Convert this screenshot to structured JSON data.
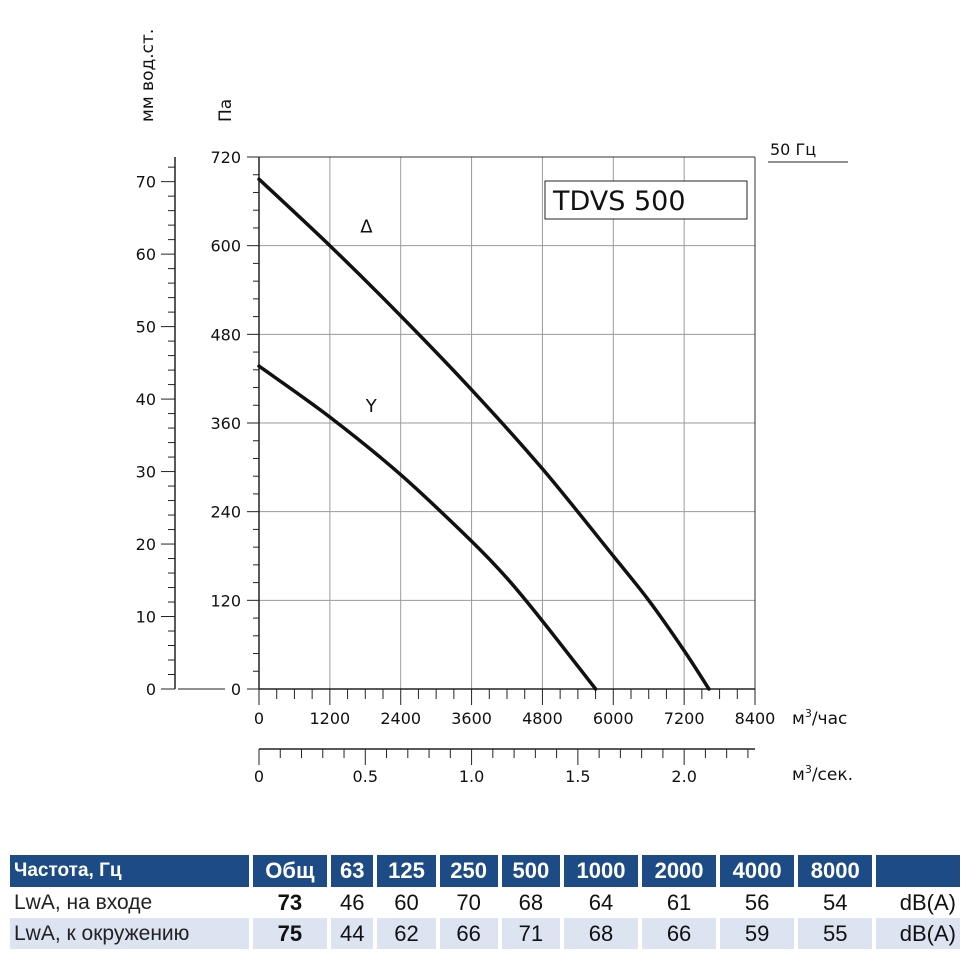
{
  "chart_data": {
    "type": "line",
    "title": "TDVS 500",
    "frequency_label": "50 Гц",
    "x": {
      "label": "м³/час",
      "ticks": [
        0,
        1200,
        2400,
        3600,
        4800,
        6000,
        7200,
        8400
      ],
      "range": [
        0,
        8400
      ]
    },
    "x2": {
      "label": "м³/сек.",
      "ticks": [
        0,
        0.5,
        1.0,
        1.5,
        2.0
      ],
      "tick_labels": [
        "0",
        "0.5",
        "1.0",
        "1.5",
        "2.0"
      ],
      "range": [
        0,
        2.3333
      ]
    },
    "y": {
      "label": "Па",
      "ticks": [
        0,
        120,
        240,
        360,
        480,
        600,
        720
      ],
      "range": [
        0,
        720
      ]
    },
    "y2": {
      "label": "мм вод.ст.",
      "ticks": [
        0,
        10,
        20,
        30,
        40,
        50,
        60,
        70
      ],
      "range": [
        0,
        73.4
      ]
    },
    "grid": true,
    "series": [
      {
        "name": "Δ",
        "points": [
          [
            0,
            690
          ],
          [
            1200,
            600
          ],
          [
            2400,
            505
          ],
          [
            3600,
            405
          ],
          [
            4800,
            298
          ],
          [
            6000,
            180
          ],
          [
            6600,
            120
          ],
          [
            7200,
            52
          ],
          [
            7620,
            0
          ]
        ]
      },
      {
        "name": "Y",
        "points": [
          [
            0,
            437
          ],
          [
            1200,
            368
          ],
          [
            2400,
            290
          ],
          [
            3600,
            200
          ],
          [
            4200,
            150
          ],
          [
            4800,
            92
          ],
          [
            5700,
            0
          ]
        ]
      }
    ]
  },
  "table": {
    "headers": [
      "Частота, Гц",
      "Общ",
      "63",
      "125",
      "250",
      "500",
      "1000",
      "2000",
      "4000",
      "8000",
      ""
    ],
    "rows": [
      {
        "label": "LwA, на входе",
        "total": "73",
        "values": [
          "46",
          "60",
          "70",
          "68",
          "64",
          "61",
          "56",
          "54"
        ],
        "unit": "dB(A)"
      },
      {
        "label": "LwA, к окружению",
        "total": "75",
        "values": [
          "44",
          "62",
          "66",
          "71",
          "68",
          "66",
          "59",
          "55"
        ],
        "unit": "dB(A)"
      }
    ]
  }
}
